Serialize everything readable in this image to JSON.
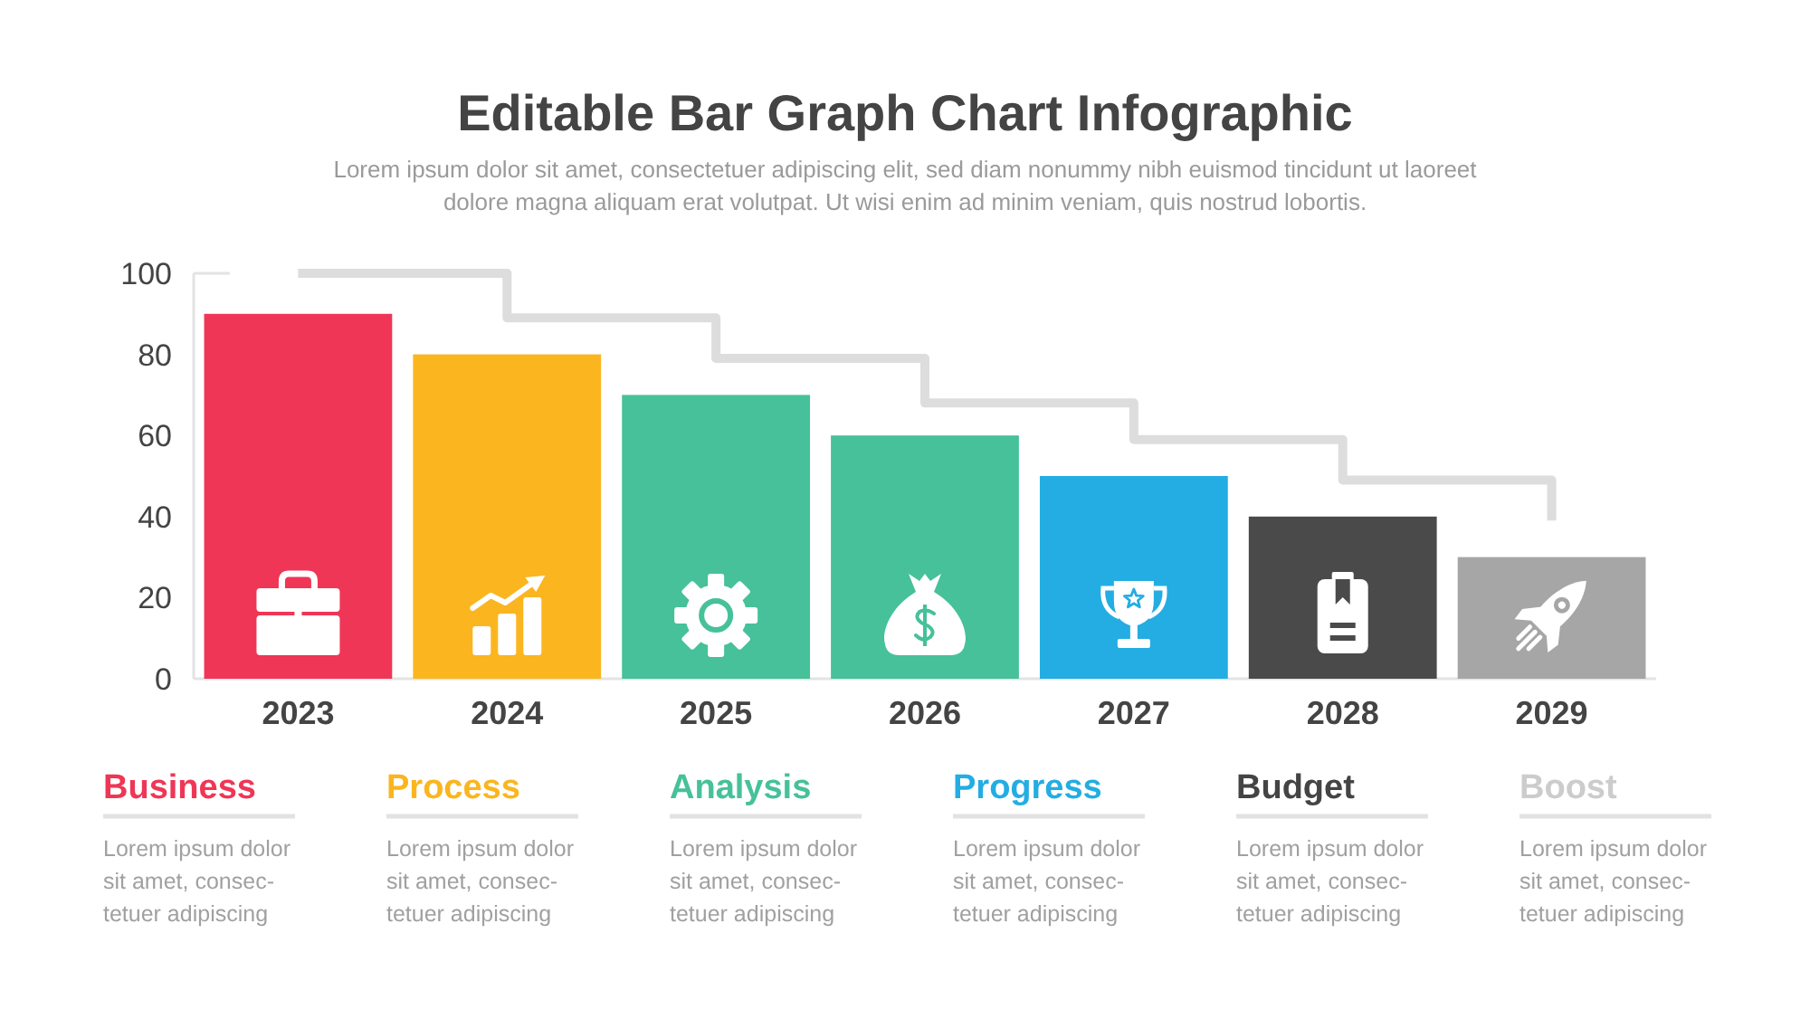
{
  "chart_data": {
    "type": "bar",
    "title": "Editable Bar Graph Chart Infographic",
    "subtitle": "Lorem ipsum dolor sit amet, consectetuer adipiscing elit, sed diam nonummy nibh euismod tincidunt ut laoreet\ndolore magna aliquam erat volutpat. Ut wisi enim ad minim veniam, quis nostrud lobortis.",
    "categories": [
      "2023",
      "2024",
      "2025",
      "2026",
      "2027",
      "2028",
      "2029"
    ],
    "series": [
      {
        "colors": [
          "#ef3656",
          "#fbb51f",
          "#46c19a",
          "#46c19a",
          "#23ade3",
          "#4a4a4a",
          "#a6a6a6"
        ],
        "values": [
          90,
          80,
          70,
          60,
          50,
          40,
          30
        ]
      },
      {
        "type": "step",
        "color": "#dddddd",
        "values": [
          100,
          89,
          79,
          68,
          59,
          49,
          39
        ]
      }
    ],
    "ylim": [
      0,
      100
    ],
    "yticks": [
      0,
      20,
      40,
      60,
      80,
      100
    ],
    "annotations": [
      "Business",
      "Lorem ipsum dolor\nsit amet, consec-\ntetuer adipiscing",
      "Process",
      "Lorem ipsum dolor\nsit amet, consec-\ntetuer adipiscing",
      "Analysis",
      "Lorem ipsum dolor\nsit amet, consec-\ntetuer adipiscing",
      "Progress",
      "Lorem ipsum dolor\nsit amet, consec-\ntetuer adipiscing",
      "Budget",
      "Lorem ipsum dolor\nsit amet, consec-\ntetuer adipiscing",
      "Boost",
      "Lorem ipsum dolor\nsit amet, consec-\ntetuer adipiscing"
    ]
  }
}
